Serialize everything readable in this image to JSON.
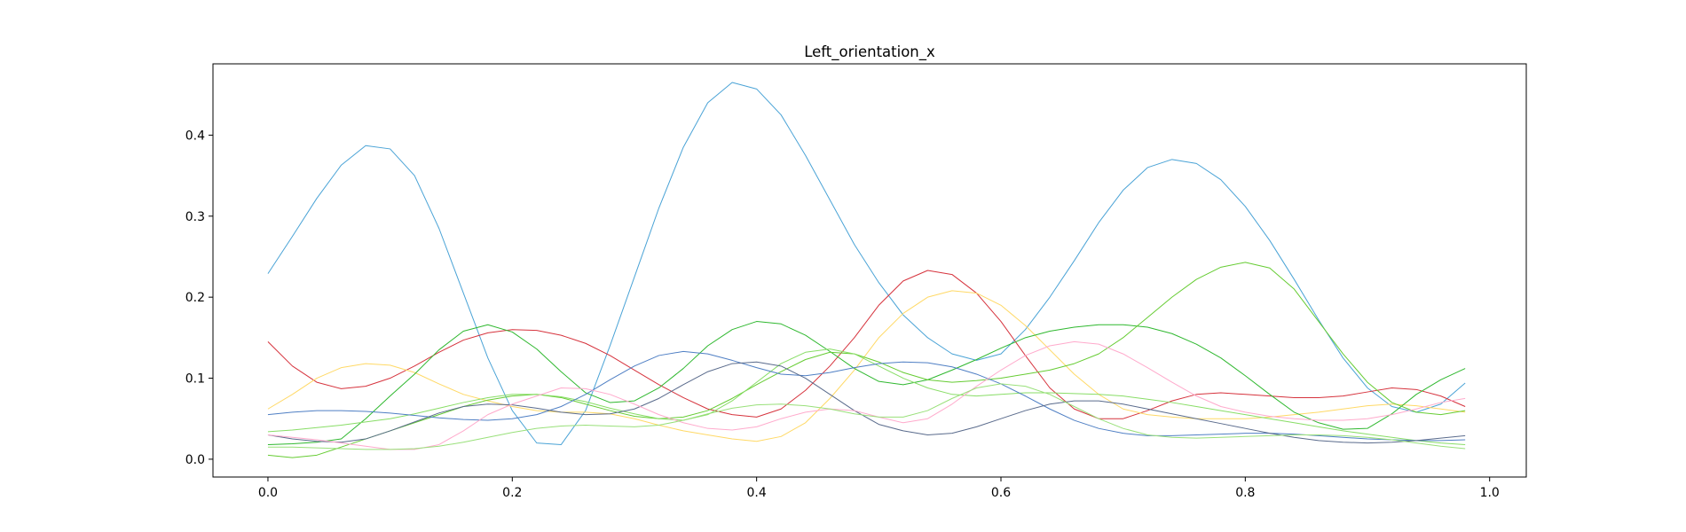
{
  "chart_data": {
    "type": "line",
    "title": "Left_orientation_x",
    "xlabel": "",
    "ylabel": "",
    "xlim": [
      -0.045,
      1.03
    ],
    "ylim": [
      -0.022,
      0.488
    ],
    "xticks": [
      0.0,
      0.2,
      0.4,
      0.6,
      0.8,
      1.0
    ],
    "xtick_labels": [
      "0.0",
      "0.2",
      "0.4",
      "0.6",
      "0.8",
      "1.0"
    ],
    "yticks": [
      0.0,
      0.1,
      0.2,
      0.3,
      0.4
    ],
    "ytick_labels": [
      "0.0",
      "0.1",
      "0.2",
      "0.3",
      "0.4"
    ],
    "grid": false,
    "legend": "none",
    "x": [
      0.0,
      0.02,
      0.04,
      0.06,
      0.08,
      0.1,
      0.12,
      0.14,
      0.16,
      0.18,
      0.2,
      0.22,
      0.24,
      0.26,
      0.28,
      0.3,
      0.32,
      0.34,
      0.36,
      0.38,
      0.4,
      0.42,
      0.44,
      0.46,
      0.48,
      0.5,
      0.52,
      0.54,
      0.56,
      0.58,
      0.6,
      0.62,
      0.64,
      0.66,
      0.68,
      0.7,
      0.72,
      0.74,
      0.76,
      0.78,
      0.8,
      0.82,
      0.84,
      0.86,
      0.88,
      0.9,
      0.92,
      0.94,
      0.96,
      0.98
    ],
    "series": [
      {
        "color": "#4aa3d6",
        "values": [
          0.229,
          0.275,
          0.322,
          0.363,
          0.387,
          0.383,
          0.35,
          0.285,
          0.205,
          0.125,
          0.06,
          0.02,
          0.018,
          0.06,
          0.14,
          0.225,
          0.31,
          0.385,
          0.44,
          0.465,
          0.457,
          0.425,
          0.375,
          0.32,
          0.265,
          0.218,
          0.178,
          0.15,
          0.13,
          0.122,
          0.13,
          0.16,
          0.2,
          0.245,
          0.292,
          0.332,
          0.36,
          0.37,
          0.365,
          0.345,
          0.312,
          0.27,
          0.222,
          0.172,
          0.125,
          0.088,
          0.065,
          0.058,
          0.068,
          0.094
        ]
      },
      {
        "color": "#d6333d",
        "values": [
          0.145,
          0.115,
          0.095,
          0.087,
          0.09,
          0.1,
          0.115,
          0.132,
          0.147,
          0.156,
          0.16,
          0.159,
          0.153,
          0.143,
          0.128,
          0.11,
          0.092,
          0.076,
          0.062,
          0.055,
          0.052,
          0.062,
          0.085,
          0.115,
          0.15,
          0.19,
          0.22,
          0.233,
          0.228,
          0.205,
          0.17,
          0.128,
          0.088,
          0.062,
          0.05,
          0.05,
          0.06,
          0.072,
          0.08,
          0.082,
          0.08,
          0.078,
          0.076,
          0.076,
          0.078,
          0.083,
          0.088,
          0.086,
          0.078,
          0.065
        ]
      },
      {
        "color": "#ffd966",
        "values": [
          0.062,
          0.08,
          0.1,
          0.113,
          0.118,
          0.116,
          0.107,
          0.093,
          0.08,
          0.072,
          0.065,
          0.06,
          0.058,
          0.058,
          0.056,
          0.05,
          0.042,
          0.035,
          0.03,
          0.025,
          0.022,
          0.028,
          0.045,
          0.075,
          0.11,
          0.15,
          0.18,
          0.2,
          0.208,
          0.205,
          0.19,
          0.165,
          0.135,
          0.105,
          0.08,
          0.062,
          0.055,
          0.052,
          0.05,
          0.05,
          0.05,
          0.052,
          0.055,
          0.058,
          0.062,
          0.066,
          0.068,
          0.066,
          0.062,
          0.058
        ]
      },
      {
        "color": "#2fb82f",
        "values": [
          0.018,
          0.019,
          0.021,
          0.025,
          0.05,
          0.078,
          0.105,
          0.135,
          0.158,
          0.166,
          0.157,
          0.136,
          0.108,
          0.082,
          0.07,
          0.072,
          0.088,
          0.112,
          0.14,
          0.16,
          0.17,
          0.167,
          0.153,
          0.133,
          0.112,
          0.096,
          0.092,
          0.098,
          0.11,
          0.123,
          0.137,
          0.15,
          0.158,
          0.163,
          0.166,
          0.166,
          0.163,
          0.155,
          0.142,
          0.125,
          0.103,
          0.08,
          0.058,
          0.045,
          0.037,
          0.038,
          0.056,
          0.08,
          0.098,
          0.112
        ]
      },
      {
        "color": "#66cc33",
        "values": [
          0.005,
          0.002,
          0.005,
          0.015,
          0.025,
          0.035,
          0.045,
          0.055,
          0.065,
          0.073,
          0.078,
          0.08,
          0.076,
          0.068,
          0.06,
          0.053,
          0.05,
          0.052,
          0.06,
          0.075,
          0.092,
          0.108,
          0.123,
          0.132,
          0.13,
          0.12,
          0.107,
          0.098,
          0.095,
          0.097,
          0.1,
          0.105,
          0.11,
          0.118,
          0.13,
          0.15,
          0.175,
          0.2,
          0.222,
          0.237,
          0.243,
          0.236,
          0.21,
          0.17,
          0.13,
          0.095,
          0.07,
          0.058,
          0.055,
          0.06
        ]
      },
      {
        "color": "#88dd66",
        "values": [
          0.034,
          0.036,
          0.039,
          0.042,
          0.046,
          0.05,
          0.056,
          0.063,
          0.07,
          0.076,
          0.08,
          0.08,
          0.077,
          0.071,
          0.063,
          0.056,
          0.05,
          0.048,
          0.055,
          0.072,
          0.095,
          0.118,
          0.132,
          0.136,
          0.13,
          0.115,
          0.1,
          0.088,
          0.08,
          0.078,
          0.08,
          0.082,
          0.082,
          0.081,
          0.08,
          0.078,
          0.074,
          0.07,
          0.065,
          0.06,
          0.055,
          0.05,
          0.045,
          0.04,
          0.035,
          0.031,
          0.027,
          0.023,
          0.02,
          0.018
        ]
      },
      {
        "color": "#4f7fc4",
        "values": [
          0.055,
          0.058,
          0.06,
          0.06,
          0.059,
          0.057,
          0.054,
          0.051,
          0.049,
          0.048,
          0.05,
          0.055,
          0.065,
          0.08,
          0.098,
          0.115,
          0.128,
          0.133,
          0.13,
          0.122,
          0.113,
          0.105,
          0.103,
          0.107,
          0.113,
          0.118,
          0.12,
          0.119,
          0.114,
          0.105,
          0.093,
          0.078,
          0.062,
          0.048,
          0.038,
          0.032,
          0.029,
          0.029,
          0.03,
          0.031,
          0.032,
          0.032,
          0.031,
          0.029,
          0.027,
          0.025,
          0.024,
          0.023,
          0.023,
          0.024
        ]
      },
      {
        "color": "#5a6b8c",
        "values": [
          0.03,
          0.025,
          0.022,
          0.021,
          0.025,
          0.035,
          0.046,
          0.057,
          0.065,
          0.068,
          0.067,
          0.063,
          0.058,
          0.055,
          0.056,
          0.062,
          0.075,
          0.092,
          0.108,
          0.118,
          0.12,
          0.115,
          0.1,
          0.08,
          0.06,
          0.043,
          0.035,
          0.03,
          0.032,
          0.04,
          0.05,
          0.06,
          0.068,
          0.072,
          0.072,
          0.068,
          0.062,
          0.056,
          0.05,
          0.044,
          0.038,
          0.032,
          0.027,
          0.023,
          0.021,
          0.02,
          0.021,
          0.023,
          0.026,
          0.029
        ]
      },
      {
        "color": "#ffaacc",
        "values": [
          0.03,
          0.027,
          0.024,
          0.02,
          0.016,
          0.012,
          0.012,
          0.018,
          0.035,
          0.055,
          0.068,
          0.078,
          0.088,
          0.087,
          0.08,
          0.068,
          0.055,
          0.045,
          0.038,
          0.036,
          0.04,
          0.05,
          0.058,
          0.062,
          0.06,
          0.052,
          0.045,
          0.05,
          0.068,
          0.09,
          0.11,
          0.128,
          0.14,
          0.145,
          0.142,
          0.13,
          0.113,
          0.095,
          0.078,
          0.065,
          0.058,
          0.053,
          0.05,
          0.048,
          0.048,
          0.05,
          0.055,
          0.062,
          0.07,
          0.075
        ]
      },
      {
        "color": "#99e07a",
        "values": [
          0.015,
          0.015,
          0.014,
          0.013,
          0.012,
          0.012,
          0.013,
          0.016,
          0.021,
          0.027,
          0.033,
          0.038,
          0.041,
          0.042,
          0.041,
          0.04,
          0.042,
          0.048,
          0.056,
          0.063,
          0.067,
          0.068,
          0.066,
          0.062,
          0.056,
          0.052,
          0.052,
          0.06,
          0.075,
          0.088,
          0.093,
          0.09,
          0.08,
          0.065,
          0.05,
          0.038,
          0.03,
          0.027,
          0.026,
          0.027,
          0.028,
          0.029,
          0.03,
          0.03,
          0.029,
          0.027,
          0.024,
          0.02,
          0.016,
          0.013
        ]
      }
    ]
  }
}
